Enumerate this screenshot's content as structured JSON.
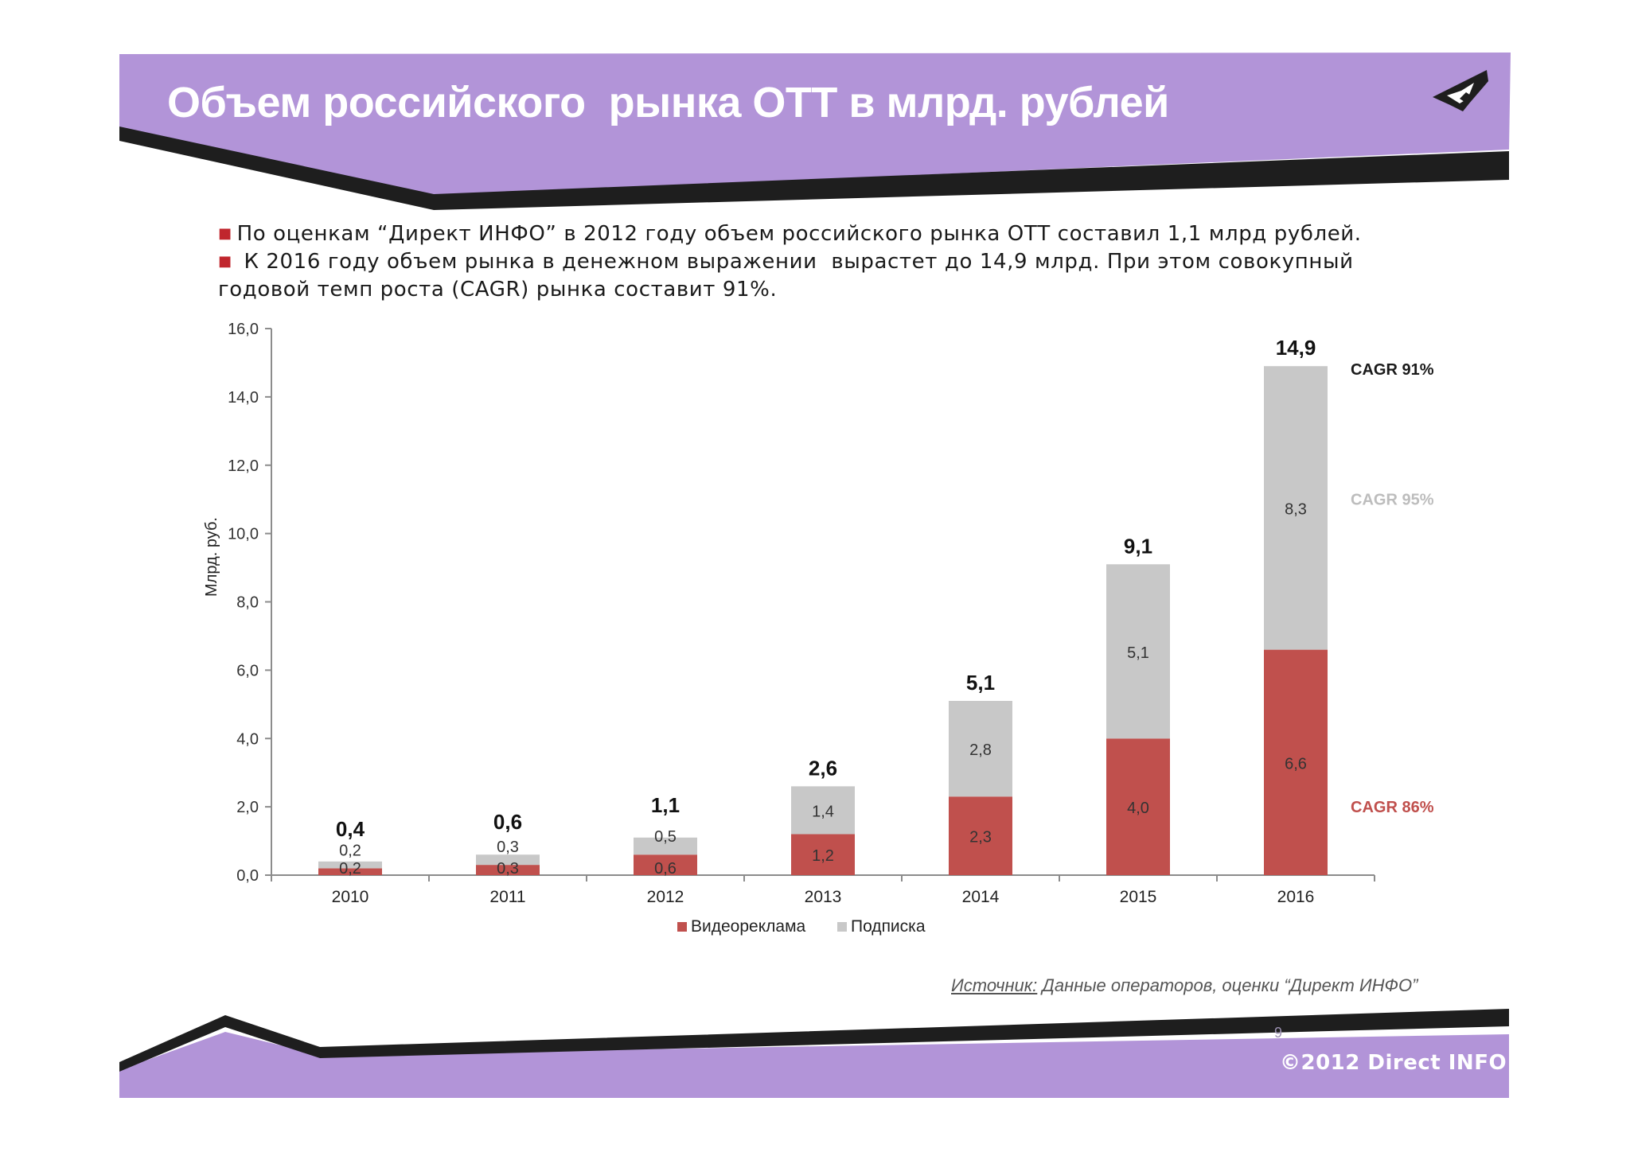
{
  "header": {
    "title": "Объем российского  рынка ОТТ в млрд. рублей",
    "logo_icon": "direct-info-logo-icon"
  },
  "bullets": {
    "marker": "■",
    "items": [
      "По оценкам “Директ ИНФО” в 2012 году объем российского рынка ОТТ составил 1,1 млрд рублей.",
      " К 2016 году объем рынка в денежном выражении  вырастет до 14,9 млрд. При этом совокупный годовой темп роста (CAGR) рынка составит 91%."
    ]
  },
  "colors": {
    "header_purple": "#b294d8",
    "band_black": "#1e1e1e",
    "video_ads": "#c0504d",
    "subscription": "#c8c8c8",
    "cagr_total": "#1a1a1a",
    "cagr_subscription": "#bdbdbd",
    "cagr_video": "#c0504d"
  },
  "chart_data": {
    "type": "bar",
    "stacked": true,
    "categories": [
      "2010",
      "2011",
      "2012",
      "2013",
      "2014",
      "2015",
      "2016"
    ],
    "series": [
      {
        "name": "Видеореклама",
        "values": [
          0.2,
          0.3,
          0.6,
          1.2,
          2.3,
          4.0,
          6.6
        ],
        "labels": [
          "0,2",
          "0,3",
          "0,6",
          "1,2",
          "2,3",
          "4,0",
          "6,6"
        ],
        "color": "#c0504d"
      },
      {
        "name": "Подписка",
        "values": [
          0.2,
          0.3,
          0.5,
          1.4,
          2.8,
          5.1,
          8.3
        ],
        "labels": [
          "0,2",
          "0,3",
          "0,5",
          "1,4",
          "2,8",
          "5,1",
          "8,3"
        ],
        "color": "#c8c8c8"
      }
    ],
    "totals": [
      0.4,
      0.6,
      1.1,
      2.6,
      5.1,
      9.1,
      14.9
    ],
    "total_labels": [
      "0,4",
      "0,6",
      "1,1",
      "2,6",
      "5,1",
      "9,1",
      "14,9"
    ],
    "ylabel": "Млрд. руб.",
    "ylim": [
      0,
      16
    ],
    "yticks": [
      0,
      2,
      4,
      6,
      8,
      10,
      12,
      14,
      16
    ],
    "ytick_labels": [
      "0,0",
      "2,0",
      "4,0",
      "6,0",
      "8,0",
      "10,0",
      "12,0",
      "14,0",
      "16,0"
    ],
    "grid": false,
    "legend_position": "bottom",
    "annotations": [
      {
        "text": "CAGR  91%",
        "series": "total",
        "value": 14.9,
        "color": "#1a1a1a"
      },
      {
        "text": "CAGR  95%",
        "series": "Подписка",
        "value": 11.0,
        "color": "#bdbdbd"
      },
      {
        "text": "CAGR  86%",
        "series": "Видеореклама",
        "value": 2.0,
        "color": "#c0504d"
      }
    ]
  },
  "source": {
    "label": "Источник:",
    "text": " Данные операторов, оценки “Директ ИНФО”"
  },
  "footer": {
    "page_number": "9",
    "copyright": "©2012 Direct INFO"
  }
}
